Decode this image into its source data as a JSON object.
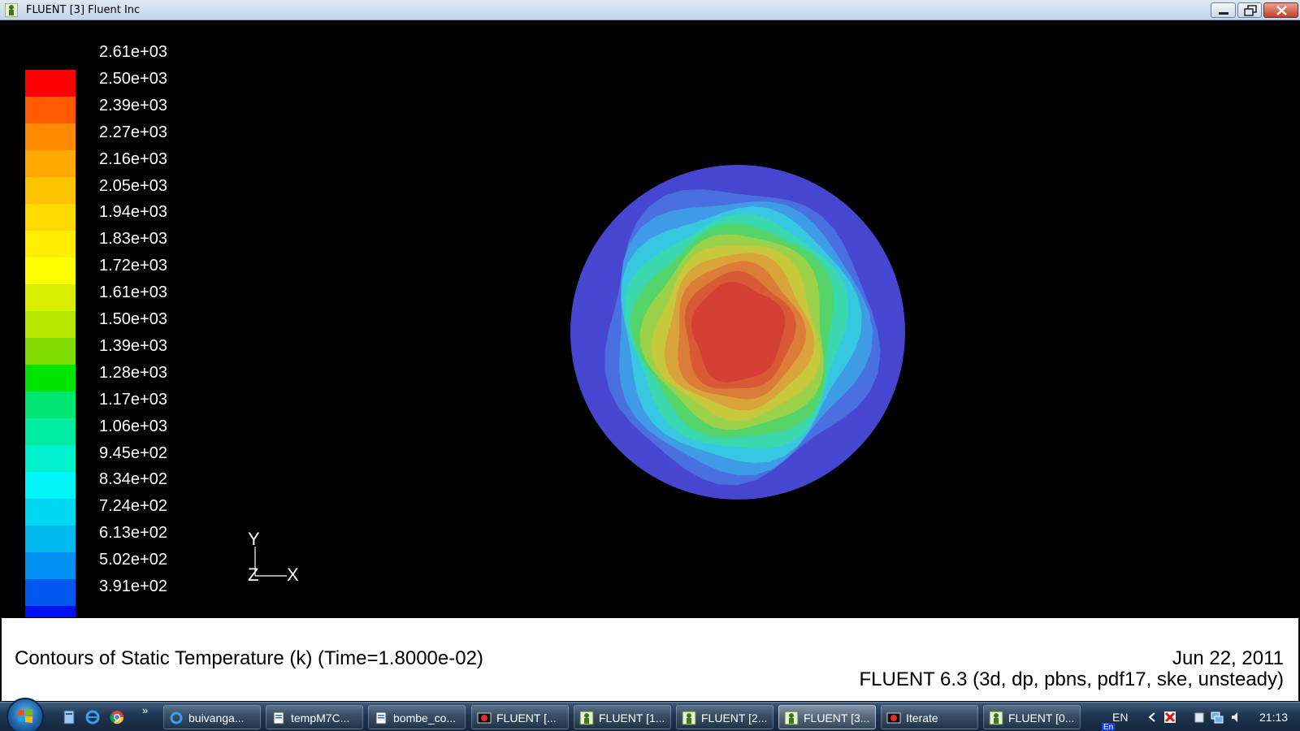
{
  "window": {
    "title": "FLUENT [3] Fluent Inc",
    "icon": "fluent-app-icon",
    "buttons": [
      "minimize",
      "maximize",
      "close"
    ]
  },
  "colorbar": {
    "labels": [
      "2.61e+03",
      "2.50e+03",
      "2.39e+03",
      "2.27e+03",
      "2.16e+03",
      "2.05e+03",
      "1.94e+03",
      "1.83e+03",
      "1.72e+03",
      "1.61e+03",
      "1.50e+03",
      "1.39e+03",
      "1.28e+03",
      "1.17e+03",
      "1.06e+03",
      "9.45e+02",
      "8.34e+02",
      "7.24e+02",
      "6.13e+02",
      "5.02e+02",
      "3.91e+02"
    ],
    "colors": [
      "#ff0000",
      "#ff5a00",
      "#ff8a00",
      "#ffa800",
      "#ffc400",
      "#ffda00",
      "#ffec00",
      "#ffff00",
      "#d8f000",
      "#b4e600",
      "#80dc00",
      "#00e400",
      "#00e670",
      "#00eca2",
      "#00f2cc",
      "#00f6f6",
      "#00d8f2",
      "#00b8ee",
      "#0090f0",
      "#0058f0",
      "#0010f0"
    ]
  },
  "axes": {
    "y": "Y",
    "z": "Z",
    "x": "X"
  },
  "contour_colors": {
    "outer": "#4646d0",
    "rings": [
      "#4a6fe0",
      "#3f9be6",
      "#38c7e0",
      "#3bd8b0",
      "#55d46a",
      "#9cd24a",
      "#c8c83c",
      "#d9a43a",
      "#db7d38",
      "#d85a34",
      "#d53e32"
    ]
  },
  "info": {
    "title": "Contours of Static Temperature (k)  (Time=1.8000e-02)",
    "date": "Jun 22, 2011",
    "version": "FLUENT 6.3 (3d, dp, pbns, pdf17, ske, unsteady)"
  },
  "taskbar": {
    "items": [
      {
        "label": "buivanga...",
        "icon": "ie-icon"
      },
      {
        "label": "tempM7C...",
        "icon": "document-icon"
      },
      {
        "label": "bombe_co...",
        "icon": "document-icon"
      },
      {
        "label": "FLUENT  [...",
        "icon": "fluent-graphics-icon"
      },
      {
        "label": "FLUENT [1...",
        "icon": "fluent-app-icon"
      },
      {
        "label": "FLUENT [2...",
        "icon": "fluent-app-icon"
      },
      {
        "label": "FLUENT [3...",
        "icon": "fluent-app-icon"
      },
      {
        "label": "Iterate",
        "icon": "fluent-graphics-icon"
      },
      {
        "label": "FLUENT [0...",
        "icon": "fluent-app-icon"
      }
    ],
    "quick_launch": [
      "show-desktop-icon",
      "ie-icon",
      "chrome-icon"
    ],
    "quick_more": "»",
    "language": "EN",
    "language_badge": "En",
    "clock": "21:13"
  }
}
